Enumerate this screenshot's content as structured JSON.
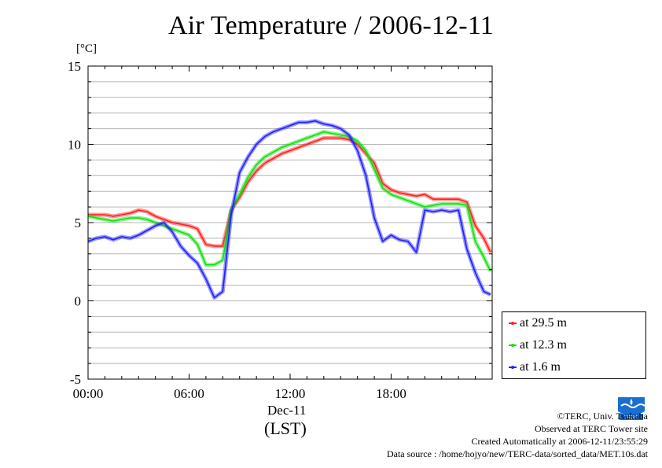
{
  "title": "Air Temperature / 2006-12-11",
  "unit_label": "[°C]",
  "x_date_label": "Dec-11",
  "x_tz_label": "(LST)",
  "legend": {
    "items": [
      {
        "label": "at 29.5 m",
        "color": "#ff2020"
      },
      {
        "label": "at 12.3 m",
        "color": "#10e010"
      },
      {
        "label": "at 1.6 m",
        "color": "#2020ff"
      }
    ]
  },
  "credits": {
    "copyright": "©TERC, Univ. Tsukuba",
    "site": "Observed at TERC Tower site",
    "created": "Created Automatically at 2006-12-11/23:55:29",
    "source": "Data source : /home/hojyo/new/TERC-data/sorted_data/MET.10s.dat"
  },
  "logo_text": "TERC",
  "chart_data": {
    "type": "line",
    "title": "Air Temperature / 2006-12-11",
    "xlabel": "Dec-11 (LST)",
    "ylabel": "[°C]",
    "xlim": [
      0,
      24
    ],
    "ylim": [
      -5,
      15
    ],
    "x_ticks": [
      {
        "v": 0,
        "label": "00:00"
      },
      {
        "v": 6,
        "label": "06:00"
      },
      {
        "v": 12,
        "label": "12:00"
      },
      {
        "v": 18,
        "label": "18:00"
      }
    ],
    "y_ticks": [
      {
        "v": -5,
        "label": "-5"
      },
      {
        "v": 0,
        "label": "0"
      },
      {
        "v": 5,
        "label": "5"
      },
      {
        "v": 10,
        "label": "10"
      },
      {
        "v": 15,
        "label": "15"
      }
    ],
    "grid": true,
    "legend_position": "bottom-right outside",
    "series": [
      {
        "name": "at 29.5 m",
        "color": "#ff2020",
        "x": [
          0,
          0.5,
          1,
          1.5,
          2,
          2.5,
          3,
          3.5,
          4,
          4.5,
          5,
          5.5,
          6,
          6.5,
          7,
          7.5,
          8,
          8.5,
          9,
          9.5,
          10,
          10.5,
          11,
          11.5,
          12,
          12.5,
          13,
          13.5,
          14,
          14.5,
          15,
          15.5,
          16,
          16.5,
          17,
          17.5,
          18,
          18.5,
          19,
          19.5,
          20,
          20.5,
          21,
          21.5,
          22,
          22.5,
          23,
          23.5,
          23.9
        ],
        "y": [
          5.5,
          5.5,
          5.5,
          5.4,
          5.5,
          5.6,
          5.8,
          5.7,
          5.4,
          5.2,
          5.0,
          4.9,
          4.8,
          4.6,
          3.6,
          3.5,
          3.5,
          5.8,
          6.6,
          7.6,
          8.3,
          8.8,
          9.1,
          9.4,
          9.6,
          9.8,
          10.0,
          10.2,
          10.4,
          10.4,
          10.4,
          10.3,
          10.0,
          9.4,
          8.8,
          7.5,
          7.1,
          6.9,
          6.8,
          6.7,
          6.8,
          6.5,
          6.5,
          6.5,
          6.5,
          6.3,
          4.8,
          4.0,
          3.1
        ]
      },
      {
        "name": "at 12.3 m",
        "color": "#10e010",
        "x": [
          0,
          0.5,
          1,
          1.5,
          2,
          2.5,
          3,
          3.5,
          4,
          4.5,
          5,
          5.5,
          6,
          6.5,
          7,
          7.5,
          8,
          8.5,
          9,
          9.5,
          10,
          10.5,
          11,
          11.5,
          12,
          12.5,
          13,
          13.5,
          14,
          14.5,
          15,
          15.5,
          16,
          16.5,
          17,
          17.5,
          18,
          18.5,
          19,
          19.5,
          20,
          20.5,
          21,
          21.5,
          22,
          22.5,
          23,
          23.5,
          23.9
        ],
        "y": [
          5.4,
          5.3,
          5.2,
          5.1,
          5.2,
          5.3,
          5.3,
          5.2,
          5.0,
          4.8,
          4.6,
          4.4,
          4.2,
          3.6,
          2.3,
          2.3,
          2.6,
          5.8,
          6.8,
          7.9,
          8.7,
          9.2,
          9.5,
          9.8,
          10.0,
          10.2,
          10.4,
          10.6,
          10.8,
          10.7,
          10.6,
          10.5,
          10.2,
          9.6,
          8.4,
          7.2,
          6.8,
          6.6,
          6.4,
          6.2,
          6.0,
          6.1,
          6.2,
          6.2,
          6.2,
          6.1,
          3.8,
          2.8,
          1.9
        ]
      },
      {
        "name": "at 1.6 m",
        "color": "#2020ff",
        "x": [
          0,
          0.5,
          1,
          1.5,
          2,
          2.5,
          3,
          3.5,
          4,
          4.5,
          5,
          5.5,
          6,
          6.5,
          7,
          7.5,
          8,
          8.5,
          9,
          9.5,
          10,
          10.5,
          11,
          11.5,
          12,
          12.5,
          13,
          13.5,
          14,
          14.5,
          15,
          15.5,
          16,
          16.5,
          17,
          17.5,
          18,
          18.5,
          19,
          19.5,
          20,
          20.5,
          21,
          21.5,
          22,
          22.5,
          23,
          23.5,
          23.9
        ],
        "y": [
          3.8,
          4.0,
          4.1,
          3.9,
          4.1,
          4.0,
          4.2,
          4.5,
          4.8,
          5.0,
          4.4,
          3.5,
          2.9,
          2.4,
          1.4,
          0.2,
          0.6,
          5.5,
          8.2,
          9.2,
          10.0,
          10.5,
          10.8,
          11.0,
          11.2,
          11.4,
          11.4,
          11.5,
          11.3,
          11.2,
          11.0,
          10.6,
          9.6,
          8.0,
          5.3,
          3.8,
          4.2,
          3.9,
          3.8,
          3.1,
          5.8,
          5.7,
          5.8,
          5.7,
          5.8,
          3.3,
          1.8,
          0.6,
          0.4
        ]
      }
    ]
  }
}
